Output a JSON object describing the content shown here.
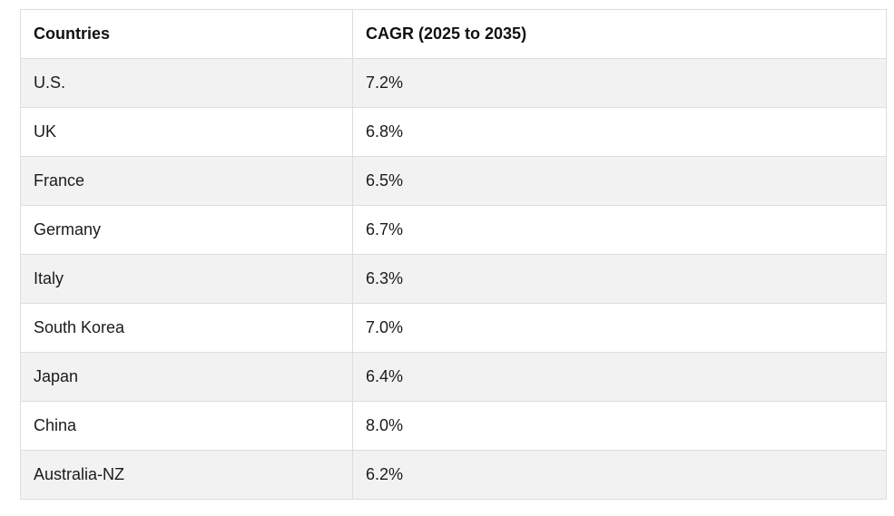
{
  "table": {
    "headers": [
      "Countries",
      "CAGR (2025 to 2035)"
    ],
    "rows": [
      [
        "U.S.",
        "7.2%"
      ],
      [
        "UK",
        "6.8%"
      ],
      [
        "France",
        "6.5%"
      ],
      [
        "Germany",
        "6.7%"
      ],
      [
        "Italy",
        "6.3%"
      ],
      [
        "South Korea",
        "7.0%"
      ],
      [
        "Japan",
        "6.4%"
      ],
      [
        "China",
        "8.0%"
      ],
      [
        "Australia-NZ",
        "6.2%"
      ]
    ]
  }
}
